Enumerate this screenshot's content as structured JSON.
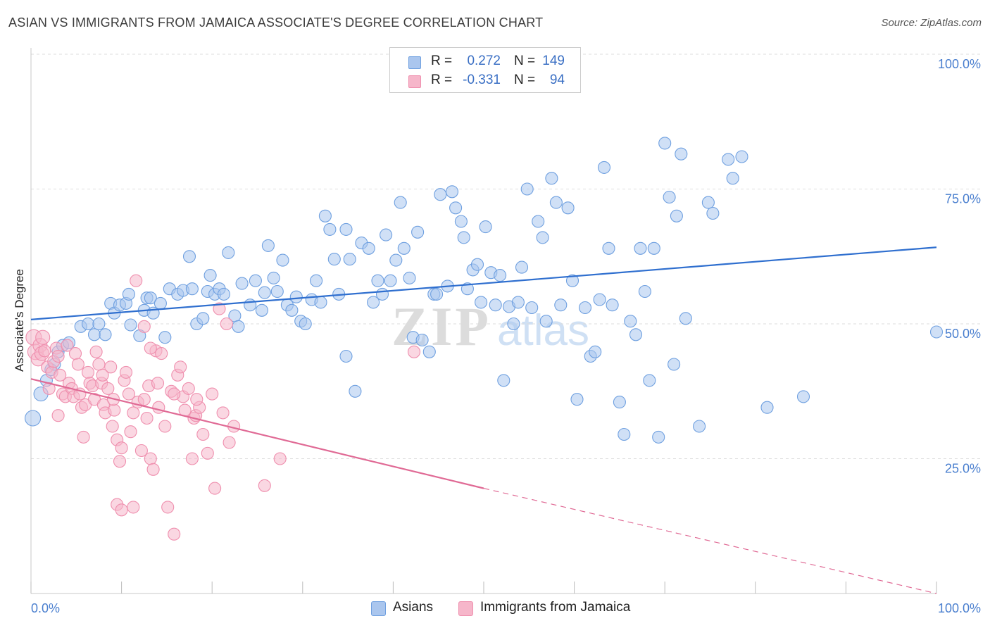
{
  "title": "ASIAN VS IMMIGRANTS FROM JAMAICA ASSOCIATE'S DEGREE CORRELATION CHART",
  "source": "Source: ZipAtlas.com",
  "watermark": {
    "zip": "ZIP",
    "atlas": "atlas"
  },
  "legend": {
    "rows": [
      {
        "r_label": "R =",
        "r_value": "0.272",
        "n_label": "N =",
        "n_value": "149",
        "color": "#aac6ee"
      },
      {
        "r_label": "R =",
        "r_value": "-0.331",
        "n_label": "N =",
        "n_value": "94",
        "color": "#f6b6ca"
      }
    ]
  },
  "bottom_legend": [
    {
      "label": "Asians",
      "color": "#aac6ee"
    },
    {
      "label": "Immigrants from Jamaica",
      "color": "#f6b6ca"
    }
  ],
  "chart_data": {
    "type": "scatter",
    "title": "ASIAN VS IMMIGRANTS FROM JAMAICA ASSOCIATE'S DEGREE CORRELATION CHART",
    "xlabel": "",
    "ylabel": "Associate's Degree",
    "xlim": [
      0,
      100
    ],
    "ylim": [
      0,
      100
    ],
    "x_tick_labels": [
      "0.0%",
      "100.0%"
    ],
    "y_tick_labels": [
      "25.0%",
      "50.0%",
      "75.0%",
      "100.0%"
    ],
    "y_ticks": [
      25,
      50,
      75,
      100
    ],
    "grid": true,
    "series": [
      {
        "name": "Asians",
        "color": "#6fa0e0",
        "fill": "#aac6ee",
        "trend": {
          "x0": 0,
          "y0": 50.8,
          "x1": 100,
          "y1": 64.2,
          "color": "#2f6fcf",
          "dashed_from": null
        },
        "points": [
          [
            0.2,
            32.5
          ],
          [
            1.1,
            37.0
          ],
          [
            1.7,
            39.5
          ],
          [
            2.2,
            41.5
          ],
          [
            2.6,
            42.5
          ],
          [
            3.0,
            44.8
          ],
          [
            3.5,
            46.0
          ],
          [
            4.2,
            46.5
          ],
          [
            5.5,
            49.5
          ],
          [
            6.3,
            50.0
          ],
          [
            7.0,
            48.0
          ],
          [
            7.5,
            50.0
          ],
          [
            8.2,
            48.0
          ],
          [
            8.8,
            53.8
          ],
          [
            9.2,
            52.0
          ],
          [
            9.8,
            53.5
          ],
          [
            10.5,
            53.8
          ],
          [
            10.8,
            55.5
          ],
          [
            11.0,
            49.8
          ],
          [
            12.0,
            47.8
          ],
          [
            12.5,
            52.5
          ],
          [
            12.8,
            54.8
          ],
          [
            13.2,
            54.8
          ],
          [
            13.5,
            52.0
          ],
          [
            14.3,
            53.8
          ],
          [
            14.8,
            47.5
          ],
          [
            15.3,
            56.5
          ],
          [
            16.2,
            55.5
          ],
          [
            16.8,
            56.2
          ],
          [
            17.5,
            62.5
          ],
          [
            17.8,
            56.5
          ],
          [
            18.3,
            50.0
          ],
          [
            19.0,
            51.0
          ],
          [
            19.5,
            56.0
          ],
          [
            19.8,
            59.0
          ],
          [
            20.3,
            55.5
          ],
          [
            20.8,
            56.5
          ],
          [
            21.3,
            55.5
          ],
          [
            21.8,
            63.2
          ],
          [
            22.5,
            51.5
          ],
          [
            22.9,
            49.5
          ],
          [
            23.3,
            57.5
          ],
          [
            24.2,
            53.5
          ],
          [
            24.8,
            58.0
          ],
          [
            25.5,
            52.5
          ],
          [
            25.8,
            55.8
          ],
          [
            26.2,
            64.5
          ],
          [
            26.8,
            58.5
          ],
          [
            27.2,
            56.0
          ],
          [
            27.8,
            61.8
          ],
          [
            28.3,
            53.5
          ],
          [
            28.8,
            52.5
          ],
          [
            29.3,
            55.0
          ],
          [
            29.8,
            50.5
          ],
          [
            30.3,
            50.0
          ],
          [
            31.0,
            54.5
          ],
          [
            31.5,
            58.0
          ],
          [
            32.0,
            54.0
          ],
          [
            32.5,
            70.0
          ],
          [
            33.0,
            67.5
          ],
          [
            33.5,
            62.0
          ],
          [
            34.0,
            55.5
          ],
          [
            34.8,
            67.5
          ],
          [
            35.2,
            62.0
          ],
          [
            34.8,
            44.0
          ],
          [
            35.8,
            37.5
          ],
          [
            36.5,
            65.0
          ],
          [
            37.3,
            64.0
          ],
          [
            37.8,
            54.0
          ],
          [
            38.3,
            58.0
          ],
          [
            38.8,
            55.5
          ],
          [
            39.2,
            66.5
          ],
          [
            39.7,
            58.0
          ],
          [
            40.3,
            61.8
          ],
          [
            40.8,
            72.5
          ],
          [
            41.2,
            64.0
          ],
          [
            41.8,
            58.5
          ],
          [
            42.2,
            47.5
          ],
          [
            42.7,
            67.0
          ],
          [
            43.2,
            47.0
          ],
          [
            44.0,
            44.8
          ],
          [
            44.5,
            55.5
          ],
          [
            44.8,
            55.5
          ],
          [
            45.2,
            74.0
          ],
          [
            46.0,
            57.0
          ],
          [
            46.5,
            74.5
          ],
          [
            46.9,
            71.5
          ],
          [
            47.5,
            69.0
          ],
          [
            47.8,
            66.0
          ],
          [
            48.2,
            56.5
          ],
          [
            48.8,
            60.0
          ],
          [
            49.3,
            61.0
          ],
          [
            49.7,
            54.0
          ],
          [
            50.2,
            68.0
          ],
          [
            50.8,
            59.5
          ],
          [
            51.3,
            53.5
          ],
          [
            51.8,
            59.0
          ],
          [
            52.2,
            39.5
          ],
          [
            52.8,
            53.2
          ],
          [
            53.3,
            50.0
          ],
          [
            53.8,
            54.0
          ],
          [
            54.2,
            60.5
          ],
          [
            54.8,
            75.0
          ],
          [
            55.3,
            53.0
          ],
          [
            56.0,
            69.0
          ],
          [
            56.5,
            66.0
          ],
          [
            56.9,
            50.5
          ],
          [
            57.5,
            77.0
          ],
          [
            58.0,
            72.5
          ],
          [
            58.5,
            53.5
          ],
          [
            59.3,
            71.5
          ],
          [
            59.8,
            58.0
          ],
          [
            60.3,
            36.0
          ],
          [
            61.2,
            53.0
          ],
          [
            61.8,
            44.0
          ],
          [
            62.3,
            44.8
          ],
          [
            62.8,
            54.5
          ],
          [
            63.3,
            79.0
          ],
          [
            63.8,
            64.0
          ],
          [
            64.2,
            53.5
          ],
          [
            65.0,
            35.5
          ],
          [
            65.5,
            29.5
          ],
          [
            66.2,
            50.5
          ],
          [
            66.8,
            48.0
          ],
          [
            67.3,
            64.0
          ],
          [
            67.8,
            56.0
          ],
          [
            68.3,
            39.5
          ],
          [
            68.8,
            64.0
          ],
          [
            69.3,
            29.0
          ],
          [
            70.0,
            83.5
          ],
          [
            70.5,
            73.5
          ],
          [
            71.0,
            42.5
          ],
          [
            71.3,
            70.0
          ],
          [
            71.8,
            81.5
          ],
          [
            72.3,
            51.0
          ],
          [
            73.8,
            31.0
          ],
          [
            74.8,
            72.5
          ],
          [
            75.3,
            70.5
          ],
          [
            77.0,
            80.5
          ],
          [
            77.5,
            77.0
          ],
          [
            78.5,
            81.0
          ],
          [
            81.3,
            34.5
          ],
          [
            85.3,
            36.5
          ],
          [
            100.0,
            48.5
          ]
        ]
      },
      {
        "name": "Immigrants from Jamaica",
        "color": "#ef8fae",
        "fill": "#f6b6ca",
        "trend": {
          "x0": 0,
          "y0": 39.8,
          "x1": 50,
          "y1": 19.5,
          "color": "#e06a95",
          "dashed_to_x": 100,
          "dashed_to_y": 0
        },
        "points": [
          [
            0.3,
            47.5
          ],
          [
            0.5,
            44.8
          ],
          [
            0.8,
            43.5
          ],
          [
            1.0,
            46.0
          ],
          [
            1.2,
            44.5
          ],
          [
            1.3,
            47.5
          ],
          [
            1.5,
            45.0
          ],
          [
            1.8,
            42.0
          ],
          [
            2.0,
            38.0
          ],
          [
            2.3,
            41.0
          ],
          [
            2.5,
            43.0
          ],
          [
            2.8,
            45.5
          ],
          [
            3.0,
            44.0
          ],
          [
            3.2,
            40.5
          ],
          [
            3.5,
            37.0
          ],
          [
            3.8,
            36.5
          ],
          [
            4.0,
            46.0
          ],
          [
            4.2,
            39.0
          ],
          [
            4.5,
            38.0
          ],
          [
            4.7,
            36.5
          ],
          [
            4.9,
            44.5
          ],
          [
            5.2,
            42.5
          ],
          [
            5.4,
            37.0
          ],
          [
            5.6,
            34.5
          ],
          [
            5.8,
            29.0
          ],
          [
            6.0,
            35.0
          ],
          [
            6.3,
            41.0
          ],
          [
            6.5,
            39.0
          ],
          [
            6.8,
            38.5
          ],
          [
            7.0,
            36.0
          ],
          [
            7.2,
            44.8
          ],
          [
            7.5,
            42.5
          ],
          [
            7.8,
            39.0
          ],
          [
            8.0,
            35.0
          ],
          [
            8.2,
            33.5
          ],
          [
            8.5,
            38.0
          ],
          [
            8.8,
            42.0
          ],
          [
            9.0,
            31.0
          ],
          [
            9.2,
            34.0
          ],
          [
            9.5,
            28.5
          ],
          [
            9.8,
            24.5
          ],
          [
            10.0,
            27.0
          ],
          [
            10.3,
            39.5
          ],
          [
            10.5,
            41.0
          ],
          [
            10.8,
            37.0
          ],
          [
            11.0,
            30.0
          ],
          [
            11.3,
            33.5
          ],
          [
            11.6,
            58.0
          ],
          [
            11.8,
            35.5
          ],
          [
            12.2,
            26.5
          ],
          [
            12.5,
            36.0
          ],
          [
            12.8,
            32.5
          ],
          [
            13.0,
            38.5
          ],
          [
            13.2,
            25.0
          ],
          [
            13.5,
            23.0
          ],
          [
            13.8,
            45.0
          ],
          [
            14.1,
            34.5
          ],
          [
            14.4,
            44.5
          ],
          [
            14.8,
            31.0
          ],
          [
            15.1,
            16.0
          ],
          [
            15.5,
            37.5
          ],
          [
            15.8,
            11.0
          ],
          [
            16.2,
            40.5
          ],
          [
            16.5,
            42.0
          ],
          [
            16.8,
            36.5
          ],
          [
            17.0,
            34.0
          ],
          [
            17.4,
            38.0
          ],
          [
            17.8,
            25.0
          ],
          [
            18.0,
            32.5
          ],
          [
            18.2,
            33.0
          ],
          [
            18.6,
            34.5
          ],
          [
            19.0,
            29.5
          ],
          [
            19.5,
            26.0
          ],
          [
            20.0,
            37.0
          ],
          [
            20.3,
            19.5
          ],
          [
            20.8,
            52.8
          ],
          [
            21.2,
            33.5
          ],
          [
            21.6,
            50.0
          ],
          [
            21.9,
            28.0
          ],
          [
            22.4,
            31.0
          ],
          [
            9.5,
            16.5
          ],
          [
            10.0,
            15.5
          ],
          [
            11.3,
            16.0
          ],
          [
            12.5,
            49.5
          ],
          [
            13.2,
            45.5
          ],
          [
            14.0,
            39.0
          ],
          [
            15.8,
            37.0
          ],
          [
            18.3,
            36.0
          ],
          [
            25.8,
            20.0
          ],
          [
            27.5,
            25.0
          ],
          [
            42.3,
            44.8
          ],
          [
            3.0,
            33.0
          ],
          [
            7.9,
            40.5
          ],
          [
            9.1,
            36.0
          ]
        ]
      }
    ]
  }
}
